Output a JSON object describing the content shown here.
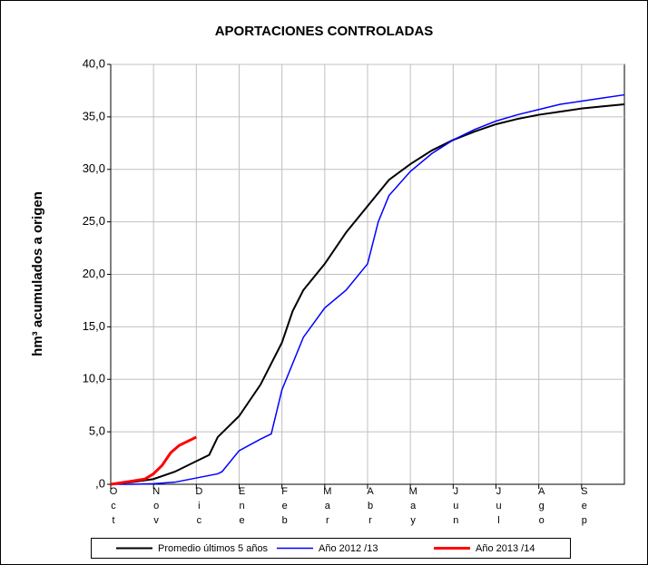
{
  "chart_data": {
    "type": "line",
    "title": "APORTACIONES CONTROLADAS",
    "y_label": "hm³ acumulados a origen",
    "categories": [
      "Oct",
      "Nov",
      "Dic",
      "Ene",
      "Feb",
      "Mar",
      "Abr",
      "May",
      "Jun",
      "Jul",
      "Ago",
      "Sep"
    ],
    "xlim": [
      0,
      12
    ],
    "ylim": [
      0,
      40
    ],
    "yticks": [
      {
        "value": 0,
        "label": ",0"
      },
      {
        "value": 5,
        "label": "5,0"
      },
      {
        "value": 10,
        "label": "10,0"
      },
      {
        "value": 15,
        "label": "15,0"
      },
      {
        "value": 20,
        "label": "20,0"
      },
      {
        "value": 25,
        "label": "25,0"
      },
      {
        "value": 30,
        "label": "30,0"
      },
      {
        "value": 35,
        "label": "35,0"
      },
      {
        "value": 40,
        "label": "40,0"
      }
    ],
    "grid": true,
    "legend": "bottom",
    "series": [
      {
        "name": "Promedio últimos 5 años",
        "color": "#000000",
        "width": 2,
        "x": [
          0,
          0.5,
          1,
          1.5,
          2,
          2.3,
          2.5,
          3,
          3.5,
          4,
          4.25,
          4.5,
          5,
          5.5,
          6,
          6.5,
          7,
          7.5,
          8,
          8.5,
          9,
          9.5,
          10,
          10.5,
          11,
          11.5,
          12
        ],
        "values": [
          0,
          0.2,
          0.5,
          1.2,
          2.2,
          2.8,
          4.5,
          6.5,
          9.5,
          13.5,
          16.5,
          18.5,
          21,
          24,
          26.5,
          29,
          30.5,
          31.8,
          32.8,
          33.6,
          34.3,
          34.8,
          35.2,
          35.5,
          35.8,
          36,
          36.2
        ]
      },
      {
        "name": "Año 2012 /13",
        "color": "#0000ff",
        "width": 1.5,
        "x": [
          0,
          0.5,
          1,
          1.5,
          2,
          2.5,
          2.6,
          3,
          3.5,
          3.75,
          4,
          4.5,
          5,
          5.5,
          6,
          6.25,
          6.5,
          7,
          7.5,
          8,
          8.5,
          9,
          9.5,
          10,
          10.5,
          11,
          11.5,
          12
        ],
        "values": [
          0,
          0,
          0.05,
          0.2,
          0.6,
          1,
          1.2,
          3.2,
          4.3,
          4.8,
          9,
          14,
          16.8,
          18.5,
          21,
          25,
          27.5,
          29.8,
          31.5,
          32.8,
          33.8,
          34.6,
          35.2,
          35.7,
          36.2,
          36.5,
          36.8,
          37.1
        ]
      },
      {
        "name": "Año 2013 /14",
        "color": "#ff0000",
        "width": 3,
        "x": [
          0,
          0.5,
          0.8,
          1,
          1.2,
          1.4,
          1.6,
          1.8,
          2
        ],
        "values": [
          0,
          0.3,
          0.5,
          1,
          1.8,
          3,
          3.7,
          4.1,
          4.5
        ]
      }
    ]
  }
}
